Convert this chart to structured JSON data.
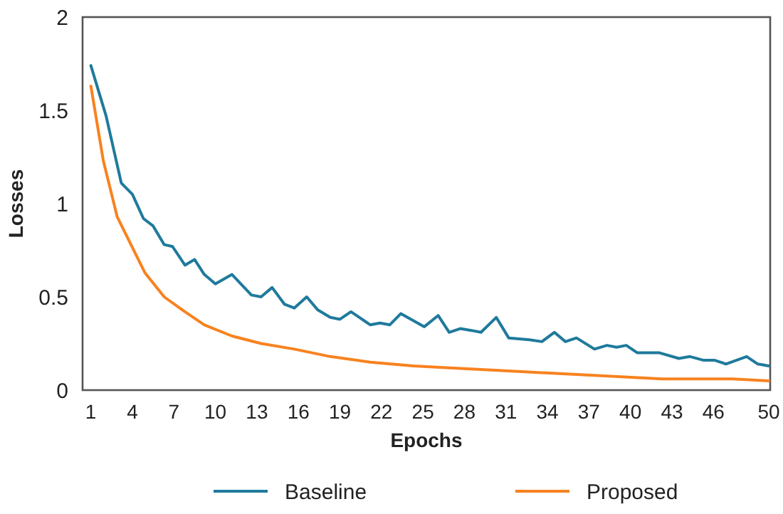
{
  "chart_data": {
    "type": "line",
    "xlabel": "Epochs",
    "ylabel": "Losses",
    "xlim": [
      0.4,
      50.1
    ],
    "ylim": [
      0,
      2
    ],
    "xticks": [
      1,
      4,
      7,
      10,
      13,
      16,
      19,
      22,
      25,
      28,
      31,
      34,
      37,
      40,
      43,
      46,
      50
    ],
    "yticks": [
      0,
      0.5,
      1,
      1.5,
      2
    ],
    "grid": false,
    "legend": "bottom",
    "marker": "none",
    "line_style": "solid",
    "series": [
      {
        "name": "Baseline",
        "color": "#1f7a9c",
        "x": [
          1,
          2.1,
          3.2,
          4,
          4.8,
          5.5,
          6.3,
          6.9,
          7.8,
          8.5,
          9.2,
          10,
          11.2,
          12.6,
          13.3,
          14.1,
          15,
          15.7,
          16.6,
          17.4,
          18.3,
          19,
          19.8,
          21.2,
          21.9,
          22.6,
          23.4,
          25.1,
          26.1,
          26.9,
          27.7,
          28.5,
          29.2,
          30.3,
          31.2,
          32.7,
          33.6,
          34.5,
          35.3,
          36.1,
          37.4,
          38.3,
          39,
          39.7,
          40.5,
          42.1,
          43.5,
          44.3,
          45.3,
          46.1,
          46.9,
          48.4,
          49.2,
          50
        ],
        "values": [
          1.74,
          1.47,
          1.11,
          1.05,
          0.92,
          0.88,
          0.78,
          0.77,
          0.67,
          0.7,
          0.62,
          0.57,
          0.62,
          0.51,
          0.5,
          0.55,
          0.46,
          0.44,
          0.5,
          0.43,
          0.39,
          0.38,
          0.42,
          0.35,
          0.36,
          0.35,
          0.41,
          0.34,
          0.4,
          0.31,
          0.33,
          0.32,
          0.31,
          0.39,
          0.28,
          0.27,
          0.26,
          0.31,
          0.26,
          0.28,
          0.22,
          0.24,
          0.23,
          0.24,
          0.2,
          0.2,
          0.17,
          0.18,
          0.16,
          0.16,
          0.14,
          0.18,
          0.14,
          0.13
        ]
      },
      {
        "name": "Proposed",
        "color": "#f8821f",
        "x": [
          1,
          1.9,
          2.9,
          3.3,
          4.9,
          6.3,
          7.8,
          9.2,
          11.2,
          13.3,
          15.7,
          18.3,
          21.2,
          24.3,
          26.7,
          31.9,
          37.1,
          42.3,
          47.4,
          50
        ],
        "values": [
          1.63,
          1.23,
          0.93,
          0.87,
          0.63,
          0.5,
          0.42,
          0.35,
          0.29,
          0.25,
          0.22,
          0.18,
          0.15,
          0.13,
          0.12,
          0.1,
          0.08,
          0.06,
          0.06,
          0.05
        ]
      }
    ]
  }
}
